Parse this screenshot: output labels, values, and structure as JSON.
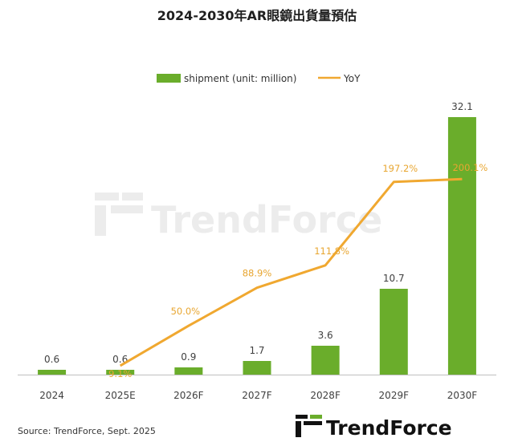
{
  "chart_data": {
    "type": "bar",
    "title": "2024-2030年AR眼鏡出貨量預估",
    "categories": [
      "2024",
      "2025E",
      "2026F",
      "2027F",
      "2028F",
      "2029F",
      "2030F"
    ],
    "series": [
      {
        "name": "shipment (unit: million)",
        "type": "bar",
        "values": [
          0.6,
          0.6,
          0.9,
          1.7,
          3.6,
          10.7,
          32.1
        ],
        "labels": [
          "0.6",
          "0.6",
          "0.9",
          "1.7",
          "3.6",
          "10.7",
          "32.1"
        ],
        "color": "#6aad2b"
      },
      {
        "name": "YoY",
        "type": "line",
        "values": [
          null,
          9.1,
          50.0,
          88.9,
          111.8,
          197.2,
          200.1
        ],
        "labels": [
          "",
          "9.1%",
          "50.0%",
          "88.9%",
          "111.8%",
          "197.2%",
          "200.1%"
        ],
        "color": "#f0a830"
      }
    ],
    "ylim": [
      0,
      33.5
    ],
    "y2lim": [
      0,
      275
    ],
    "grid": false,
    "legend": "top-center"
  },
  "source": "Source: TrendForce, Sept. 2025",
  "brand": "TrendForce",
  "watermark": "TrendForce"
}
